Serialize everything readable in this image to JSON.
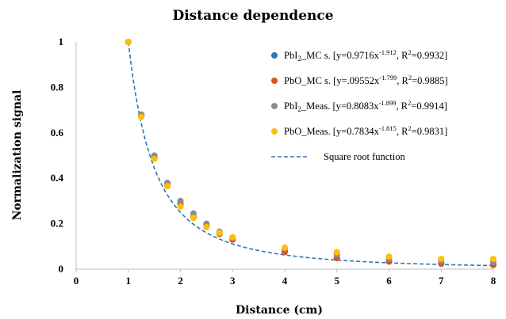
{
  "chart_data": {
    "type": "scatter",
    "title": "Distance dependence",
    "xlabel": "Distance (cm)",
    "ylabel": "Normalization signal",
    "xlim": [
      0,
      8
    ],
    "ylim": [
      0,
      1
    ],
    "x_ticks": [
      "0",
      "1",
      "2",
      "3",
      "4",
      "5",
      "6",
      "7",
      "8"
    ],
    "y_ticks": [
      "0",
      "0.2",
      "0.4",
      "0.6",
      "0.8",
      "1"
    ],
    "grid": false,
    "legend_position": "right",
    "series": [
      {
        "name": "PbI2_MC s.",
        "legend": {
          "base": "PbI",
          "sub": "2",
          "mid": "_MC s. [y=0.9716x",
          "exp": "-1.912",
          "tail1": ", R",
          "sup2": "2",
          "tail2": "=0.9932]"
        },
        "color": "#2e75b6",
        "x": [
          1,
          1.25,
          1.5,
          1.75,
          2,
          2.25,
          2.5,
          2.75,
          3,
          4,
          5,
          6,
          7,
          8
        ],
        "y": [
          1.0,
          0.68,
          0.49,
          0.37,
          0.29,
          0.23,
          0.19,
          0.16,
          0.135,
          0.08,
          0.05,
          0.035,
          0.025,
          0.02
        ]
      },
      {
        "name": "PbO_MC s.",
        "legend": {
          "base": "PbO",
          "sub": "",
          "mid": "_MC s. [y=.09552x",
          "exp": "-1.799",
          "tail1": ", R",
          "sup2": "2",
          "tail2": "=0.9885]"
        },
        "color": "#d9532b",
        "x": [
          1,
          1.25,
          1.5,
          1.75,
          2,
          2.25,
          2.5,
          2.75,
          3,
          4,
          5,
          6,
          7,
          8
        ],
        "y": [
          1.0,
          0.675,
          0.49,
          0.37,
          0.285,
          0.23,
          0.19,
          0.155,
          0.13,
          0.075,
          0.048,
          0.033,
          0.024,
          0.018
        ]
      },
      {
        "name": "PbI2_Meas.",
        "legend": {
          "base": "PbI",
          "sub": "2",
          "mid": "_Meas. [y=0.8083x",
          "exp": "-1.899",
          "tail1": ", R",
          "sup2": "2",
          "tail2": "=0.9914]"
        },
        "color": "#8c8c8c",
        "x": [
          1,
          1.25,
          1.5,
          1.75,
          2,
          2.25,
          2.5,
          2.75,
          3,
          4,
          5,
          6,
          7,
          8
        ],
        "y": [
          1.0,
          0.68,
          0.5,
          0.38,
          0.3,
          0.245,
          0.2,
          0.165,
          0.14,
          0.09,
          0.065,
          0.045,
          0.035,
          0.03
        ]
      },
      {
        "name": "PbO_Meas.",
        "legend": {
          "base": "PbO",
          "sub": "",
          "mid": "_Meas. [y=0.7834x",
          "exp": "-1.815",
          "tail1": ", R",
          "sup2": "2",
          "tail2": "=0.9831]"
        },
        "color": "#ffc000",
        "x": [
          1,
          1.25,
          1.5,
          1.75,
          2,
          2.25,
          2.5,
          2.75,
          3,
          4,
          5,
          6,
          7,
          8
        ],
        "y": [
          1.0,
          0.67,
          0.485,
          0.365,
          0.275,
          0.225,
          0.185,
          0.16,
          0.14,
          0.095,
          0.075,
          0.055,
          0.045,
          0.045
        ]
      }
    ],
    "fit_line": {
      "name": "Square root function",
      "color": "#2e75b6",
      "style": "dashed",
      "formula": "y = x^-2"
    }
  }
}
